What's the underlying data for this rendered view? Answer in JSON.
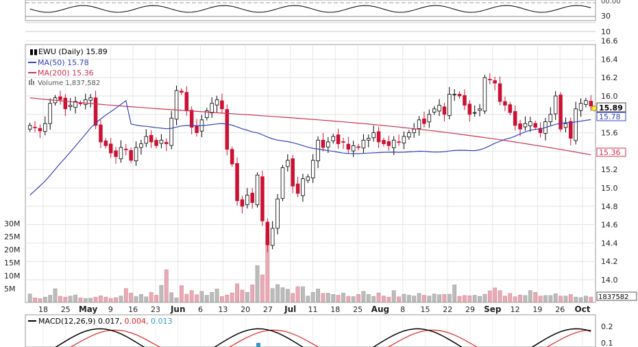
{
  "legend": {
    "symbol": "EWU",
    "period": "(Daily)",
    "last": "15.89",
    "ma50_label": "MA(50)",
    "ma50_value": "15.78",
    "ma200_label": "MA(200)",
    "ma200_value": "15.36",
    "volume_label": "Volume",
    "volume_value": "1,837,582"
  },
  "macd_legend": {
    "label": "MACD(12,26,9)",
    "macd": "0.017,",
    "signal": "0.004,",
    "hist": "0.013"
  },
  "price_badges": {
    "last": "15.89",
    "ma50": "15.78",
    "ma200": "15.36"
  },
  "volume_badge": "1837582",
  "top_panel_partial_label": "30",
  "colors": {
    "up": "#000000",
    "down": "#cc1133",
    "ma50": "#3344bb",
    "ma200": "#cc3355",
    "vol_up": "#bbbbbb",
    "vol_down": "#e8aab4"
  },
  "chart_data": {
    "type": "candlestick",
    "price_axis": {
      "ylim": [
        13.8,
        16.7
      ],
      "ticks": [
        "16.6",
        "16.4",
        "16.2",
        "16.0",
        "15.8",
        "15.6",
        "15.4",
        "15.2",
        "15.0",
        "14.8",
        "14.6",
        "14.4",
        "14.2",
        "14.0"
      ]
    },
    "rsi_axis_ticks": [
      "30",
      "10"
    ],
    "volume_axis_ticks": [
      "30M",
      "25M",
      "20M",
      "15M",
      "10M",
      "5M"
    ],
    "macd_axis_ticks": [
      "0.2",
      "0.1"
    ],
    "date_labels": [
      "18",
      "25",
      "May",
      "9",
      "16",
      "23",
      "Jun",
      "6",
      "13",
      "20",
      "27",
      "Jul",
      "11",
      "18",
      "25",
      "Aug",
      "8",
      "15",
      "22",
      "29",
      "Sep",
      "12",
      "19",
      "26",
      "Oct"
    ],
    "bold_labels": [
      "May",
      "Jun",
      "Jul",
      "Aug",
      "Sep",
      "Oct"
    ],
    "closes": [
      15.68,
      15.66,
      15.62,
      15.7,
      15.92,
      15.98,
      15.96,
      15.86,
      15.9,
      15.94,
      15.92,
      15.96,
      15.98,
      15.68,
      15.5,
      15.46,
      15.38,
      15.34,
      15.44,
      15.42,
      15.3,
      15.44,
      15.48,
      15.56,
      15.5,
      15.46,
      15.52,
      15.48,
      15.76,
      16.06,
      16.04,
      15.84,
      15.66,
      15.6,
      15.74,
      15.84,
      15.92,
      15.96,
      15.86,
      15.42,
      15.26,
      14.86,
      14.8,
      14.92,
      14.84,
      15.14,
      14.64,
      14.38,
      14.56,
      14.88,
      15.22,
      15.3,
      15.02,
      14.94,
      15.1,
      15.12,
      15.3,
      15.52,
      15.44,
      15.5,
      15.56,
      15.48,
      15.5,
      15.42,
      15.46,
      15.44,
      15.52,
      15.54,
      15.6,
      15.5,
      15.48,
      15.46,
      15.52,
      15.5,
      15.56,
      15.6,
      15.64,
      15.74,
      15.7,
      15.8,
      15.86,
      15.9,
      15.8,
      16.02,
      16.02,
      16.0,
      15.9,
      15.8,
      15.82,
      15.86,
      16.2,
      16.18,
      16.14,
      15.94,
      15.9,
      15.82,
      15.68,
      15.64,
      15.7,
      15.72,
      15.66,
      15.6,
      15.72,
      15.8,
      16.0,
      15.64,
      15.7,
      15.54,
      15.86,
      15.92,
      15.95,
      15.89
    ],
    "volume_millions": [
      3,
      1.5,
      1.2,
      1.8,
      2.5,
      5,
      2.1,
      1.8,
      2.2,
      2.6,
      1.5,
      1.3,
      1.4,
      1.8,
      2.3,
      1.8,
      1.3,
      1.6,
      2.2,
      5.1,
      3.3,
      2,
      2.8,
      1.9,
      3.6,
      2.5,
      6.3,
      12.3,
      3.5,
      1.5,
      6.2,
      2.9,
      4.3,
      2.7,
      4,
      2.5,
      3.6,
      4.9,
      2,
      2.6,
      3.4,
      6.9,
      4.5,
      3.6,
      6.5,
      13.9,
      10.3,
      25.8,
      5.1,
      6.6,
      5.4,
      4.8,
      3.2,
      5.8,
      5.8,
      2.2,
      3.6,
      4.9,
      3.2,
      3.3,
      2.8,
      2.5,
      3.3,
      2.1,
      2,
      2.8,
      4,
      2.8,
      2.1,
      3.4,
      2.2,
      1.8,
      4.3,
      1.9,
      2.9,
      2.5,
      2.2,
      3.2,
      2.5,
      2.2,
      3,
      2.7,
      2.8,
      2.9,
      6.5,
      2.1,
      2.4,
      2.3,
      2.5,
      2.1,
      2.9,
      4.2,
      5.3,
      4.3,
      2.2,
      3.2,
      1.9,
      2.6,
      2.4,
      4.3,
      3.6,
      2.2,
      2.4,
      2.4,
      3.1,
      2.2,
      2.2,
      2.8,
      1.8,
      1.6,
      2.2,
      1.84
    ]
  }
}
